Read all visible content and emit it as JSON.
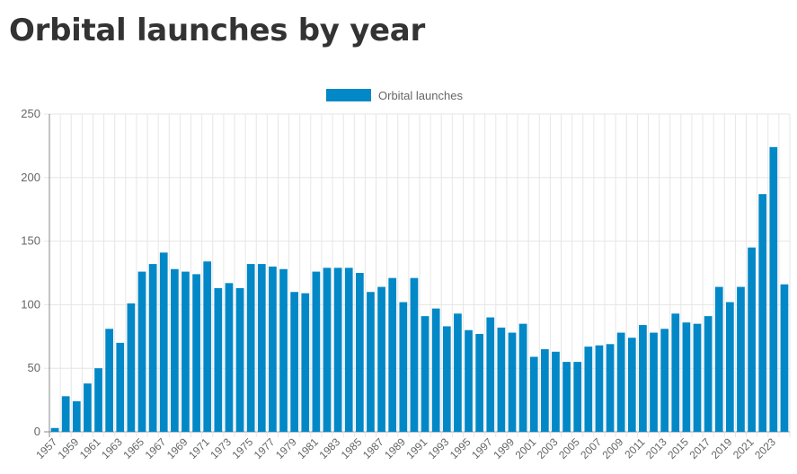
{
  "header": {
    "title": "Orbital launches by year"
  },
  "chart_data": {
    "type": "bar",
    "title": "",
    "xlabel": "",
    "ylabel": "",
    "ylim": [
      0,
      250
    ],
    "y_ticks": [
      0,
      50,
      100,
      150,
      200,
      250
    ],
    "grid": true,
    "legend_position": "top-center",
    "color": "#0288c7",
    "categories": [
      "1957",
      "1958",
      "1959",
      "1960",
      "1961",
      "1962",
      "1963",
      "1964",
      "1965",
      "1966",
      "1967",
      "1968",
      "1969",
      "1970",
      "1971",
      "1972",
      "1973",
      "1974",
      "1975",
      "1976",
      "1977",
      "1978",
      "1979",
      "1980",
      "1981",
      "1982",
      "1983",
      "1984",
      "1985",
      "1986",
      "1987",
      "1988",
      "1989",
      "1990",
      "1991",
      "1992",
      "1993",
      "1994",
      "1995",
      "1996",
      "1997",
      "1998",
      "1999",
      "2000",
      "2001",
      "2002",
      "2003",
      "2004",
      "2005",
      "2006",
      "2007",
      "2008",
      "2009",
      "2010",
      "2011",
      "2012",
      "2013",
      "2014",
      "2015",
      "2016",
      "2017",
      "2018",
      "2019",
      "2020",
      "2021",
      "2022",
      "2023",
      "2024"
    ],
    "x_tick_labels": [
      "1957",
      "1959",
      "1961",
      "1963",
      "1965",
      "1967",
      "1969",
      "1971",
      "1973",
      "1975",
      "1977",
      "1979",
      "1981",
      "1983",
      "1985",
      "1987",
      "1989",
      "1991",
      "1993",
      "1995",
      "1997",
      "1999",
      "2001",
      "2003",
      "2005",
      "2007",
      "2009",
      "2011",
      "2013",
      "2015",
      "2017",
      "2019",
      "2021",
      "2023"
    ],
    "series": [
      {
        "name": "Orbital launches",
        "values": [
          3,
          28,
          24,
          38,
          50,
          81,
          70,
          101,
          126,
          132,
          141,
          128,
          126,
          124,
          134,
          113,
          117,
          113,
          132,
          132,
          130,
          128,
          110,
          109,
          126,
          129,
          129,
          129,
          125,
          110,
          114,
          121,
          102,
          121,
          91,
          97,
          83,
          93,
          80,
          77,
          90,
          82,
          78,
          85,
          59,
          65,
          63,
          55,
          55,
          67,
          68,
          69,
          78,
          74,
          84,
          78,
          81,
          93,
          86,
          85,
          91,
          114,
          102,
          114,
          145,
          187,
          224,
          116
        ]
      }
    ]
  }
}
